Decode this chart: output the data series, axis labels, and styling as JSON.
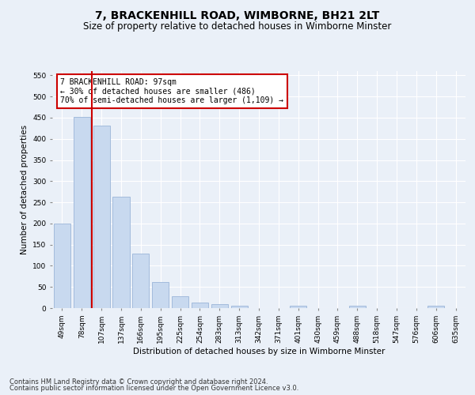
{
  "title": "7, BRACKENHILL ROAD, WIMBORNE, BH21 2LT",
  "subtitle": "Size of property relative to detached houses in Wimborne Minster",
  "xlabel": "Distribution of detached houses by size in Wimborne Minster",
  "ylabel": "Number of detached properties",
  "bar_labels": [
    "49sqm",
    "78sqm",
    "107sqm",
    "137sqm",
    "166sqm",
    "195sqm",
    "225sqm",
    "254sqm",
    "283sqm",
    "313sqm",
    "342sqm",
    "371sqm",
    "401sqm",
    "430sqm",
    "459sqm",
    "488sqm",
    "518sqm",
    "547sqm",
    "576sqm",
    "606sqm",
    "635sqm"
  ],
  "bar_values": [
    200,
    451,
    432,
    264,
    128,
    62,
    28,
    14,
    9,
    6,
    0,
    0,
    6,
    0,
    0,
    5,
    0,
    0,
    0,
    5,
    0
  ],
  "bar_color": "#c8d9ef",
  "bar_edgecolor": "#9ab5d8",
  "vline_color": "#cc0000",
  "ylim": [
    0,
    560
  ],
  "yticks": [
    0,
    50,
    100,
    150,
    200,
    250,
    300,
    350,
    400,
    450,
    500,
    550
  ],
  "annotation_text": "7 BRACKENHILL ROAD: 97sqm\n← 30% of detached houses are smaller (486)\n70% of semi-detached houses are larger (1,109) →",
  "annotation_box_color": "#ffffff",
  "annotation_box_edgecolor": "#cc0000",
  "footer_line1": "Contains HM Land Registry data © Crown copyright and database right 2024.",
  "footer_line2": "Contains public sector information licensed under the Open Government Licence v3.0.",
  "background_color": "#eaf0f8",
  "grid_color": "#ffffff",
  "title_fontsize": 10,
  "subtitle_fontsize": 8.5,
  "label_fontsize": 7.5,
  "tick_fontsize": 6.5,
  "annot_fontsize": 7,
  "footer_fontsize": 6
}
